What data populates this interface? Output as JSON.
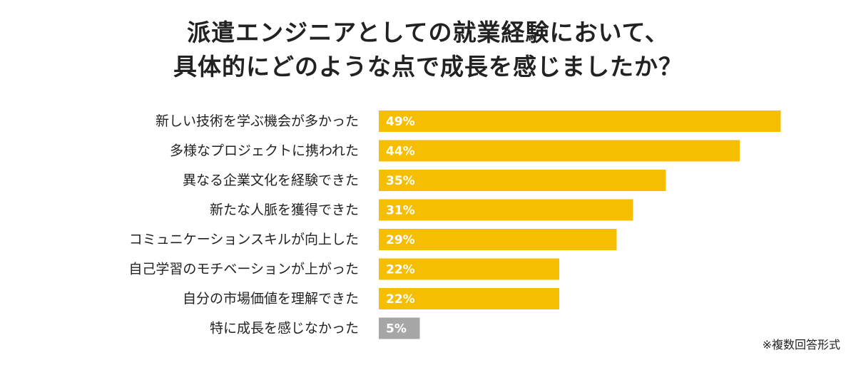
{
  "title_lines": [
    "派遣エンジニアとしての就業経験において、",
    "具体的にどのような点で成長を感じましたか？"
  ],
  "note": "※複数回答形式",
  "colors": {
    "bar": "#f5be00",
    "bar_muted": "#a6a6a6",
    "bar_label": "#ffffff",
    "text": "#222222"
  },
  "chart_data": {
    "type": "bar",
    "orientation": "horizontal",
    "categories": [
      "新しい技術を学ぶ機会が多かった",
      "多様なプロジェクトに携われた",
      "異なる企業文化を経験できた",
      "新たな人脈を獲得できた",
      "コミュニケーションスキルが向上した",
      "自己学習のモチベーションが上がった",
      "自分の市場価値を理解できた",
      "特に成長を感じなかった"
    ],
    "values": [
      49,
      44,
      35,
      31,
      29,
      22,
      22,
      5
    ],
    "value_labels": [
      "49%",
      "44%",
      "35%",
      "31%",
      "29%",
      "22%",
      "22%",
      "5%"
    ],
    "unit": "%",
    "muted_categories": [
      "特に成長を感じなかった"
    ],
    "xlim": [
      0,
      50
    ],
    "grid": false,
    "legend": "none"
  }
}
